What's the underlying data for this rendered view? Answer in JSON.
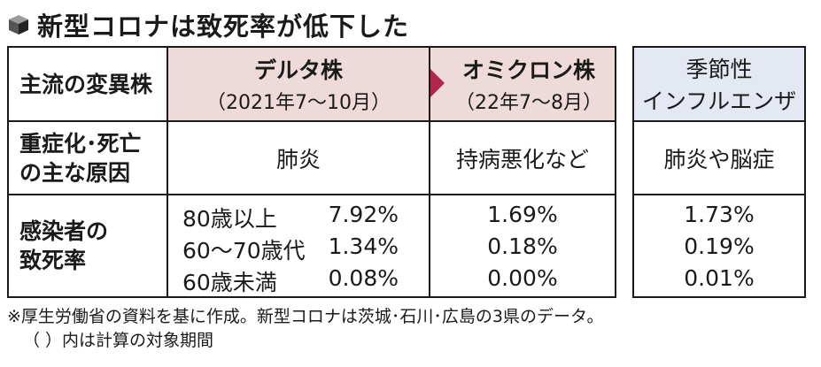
{
  "title": "新型コロナは致死率が低下した",
  "table": {
    "header_row_label": "主流の変異株",
    "delta": {
      "name": "デルタ株",
      "period": "（2021年7〜10月）"
    },
    "omicron": {
      "name": "オミクロン株",
      "period": "（22年7〜8月）"
    },
    "flu": {
      "name_line1": "季節性",
      "name_line2": "インフルエンザ"
    },
    "cause": {
      "label_line1": "重症化･死亡",
      "label_line2": "の主な原因",
      "delta": "肺炎",
      "omicron": "持病悪化など",
      "flu": "肺炎や脳症"
    },
    "fatality": {
      "label_line1": "感染者の",
      "label_line2": "致死率",
      "rows": [
        {
          "age": "80歳以上",
          "delta": "7.92%",
          "omicron": "1.69%",
          "flu": "1.73%"
        },
        {
          "age": "60〜70歳代",
          "delta": "1.34%",
          "omicron": "0.18%",
          "flu": "0.19%"
        },
        {
          "age": "60歳未満",
          "delta": "0.08%",
          "omicron": "0.00%",
          "flu": "0.01%"
        }
      ]
    }
  },
  "notes": {
    "line1": "※厚生労働省の資料を基に作成。新型コロナは茨城･石川･広島の3県のデータ。",
    "line2": "（ ）内は計算の対象期間"
  },
  "colors": {
    "header_pink": "#efdada",
    "header_blue": "#e4e8f2",
    "arrow": "#b2254e"
  }
}
